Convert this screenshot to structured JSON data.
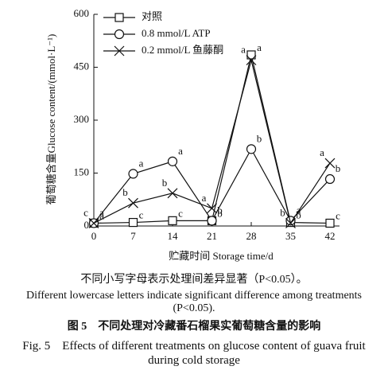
{
  "chart_data": {
    "type": "line",
    "y_label": "葡萄糖含量Glucose content/(mmol·L⁻¹)",
    "x_label": "贮藏时间 Storage time/d",
    "x": [
      0,
      7,
      14,
      21,
      28,
      35,
      42
    ],
    "xlim": [
      0,
      42
    ],
    "xticks": [
      0,
      7,
      14,
      21,
      28,
      35,
      42
    ],
    "ylim": [
      0,
      600
    ],
    "yticks": [
      0,
      150,
      300,
      450,
      600
    ],
    "grid": false,
    "legend": "top-left",
    "series": [
      {
        "name": "对照",
        "marker": "square",
        "color": "#111111",
        "values": [
          8,
          10,
          15,
          15,
          485,
          10,
          8
        ],
        "letters": [
          "a",
          "c",
          "c",
          "b",
          "a",
          "b",
          "c"
        ]
      },
      {
        "name": "0.8 mmol/L ATP",
        "marker": "circle",
        "color": "#111111",
        "values": [
          8,
          148,
          183,
          15,
          218,
          15,
          133
        ],
        "letters": [
          "a",
          "a",
          "a",
          "b",
          "b",
          "a",
          "b"
        ]
      },
      {
        "name": "0.2 mmol/L 鱼藤酮",
        "marker": "cross",
        "color": "#111111",
        "values": [
          8,
          65,
          93,
          50,
          470,
          8,
          178
        ],
        "letters": [
          "c",
          "b",
          "b",
          "a",
          "a",
          "b",
          "a"
        ]
      }
    ],
    "note_cn": "不同小写字母表示处理间差异显著（P<0.05）。",
    "note_en": "Different lowercase letters indicate significant difference among treatments (P<0.05).",
    "caption_cn": "图 5　不同处理对冷藏番石榴果实葡萄糖含量的影响",
    "caption_en": "Fig. 5　Effects of different treatments on glucose content of guava fruit during cold storage"
  }
}
